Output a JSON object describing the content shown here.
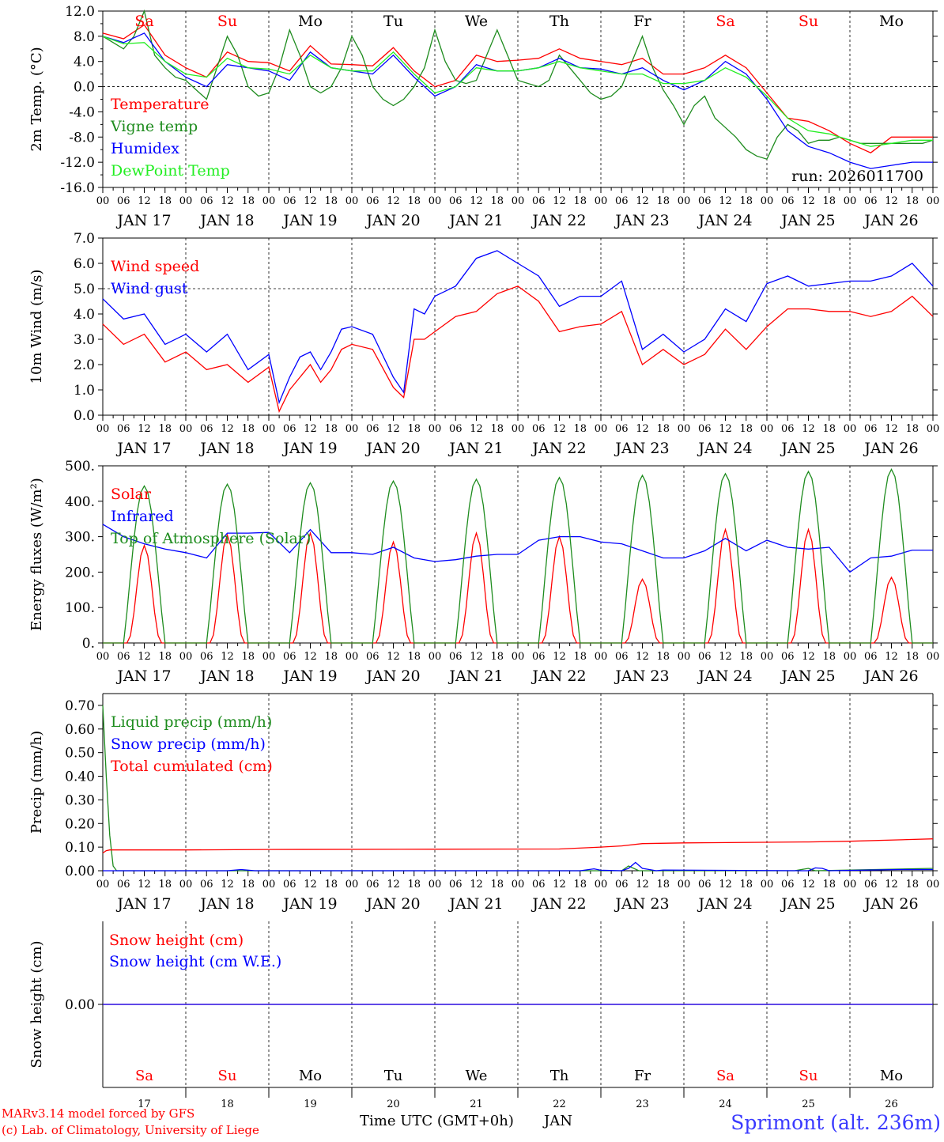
{
  "colors": {
    "red": "#ff0000",
    "darkgreen": "#1e8c1e",
    "blue": "#0000ff",
    "lightgreen": "#22ee22",
    "black": "#000000"
  },
  "days": [
    {
      "abbr": "Sa",
      "weekend": true,
      "date": "JAN 17",
      "num": "17"
    },
    {
      "abbr": "Su",
      "weekend": true,
      "date": "JAN 18",
      "num": "18"
    },
    {
      "abbr": "Mo",
      "weekend": false,
      "date": "JAN 19",
      "num": "19"
    },
    {
      "abbr": "Tu",
      "weekend": false,
      "date": "JAN 20",
      "num": "20"
    },
    {
      "abbr": "We",
      "weekend": false,
      "date": "JAN 21",
      "num": "21"
    },
    {
      "abbr": "Th",
      "weekend": false,
      "date": "JAN 22",
      "num": "22"
    },
    {
      "abbr": "Fr",
      "weekend": false,
      "date": "JAN 23",
      "num": "23"
    },
    {
      "abbr": "Sa",
      "weekend": true,
      "date": "JAN 24",
      "num": "24"
    },
    {
      "abbr": "Su",
      "weekend": true,
      "date": "JAN 25",
      "num": "25"
    },
    {
      "abbr": "Mo",
      "weekend": false,
      "date": "JAN 26",
      "num": "26"
    }
  ],
  "hour_ticks": [
    "00",
    "06",
    "12",
    "18"
  ],
  "run_label": "run: 2026011700",
  "footer": {
    "model": "MARv3.14 model forced by GFS",
    "credit": "(c) Lab. of Climatology, University of Liege",
    "axis_title": "Time UTC (GMT+0h)",
    "month": "JAN",
    "station": "Sprimont (alt. 236m)"
  },
  "chart_data": [
    {
      "id": "temp",
      "type": "line",
      "ylabel": "2m Temp. (°C)",
      "ylim": [
        -16,
        12
      ],
      "yticks": [
        "12.0",
        "8.0",
        "4.0",
        "0.0",
        "-4.0",
        "-8.0",
        "-12.0",
        "-16.0"
      ],
      "ytick_values": [
        12,
        8,
        4,
        0,
        -4,
        -8,
        -12,
        -16
      ],
      "ref_line": 0,
      "series": [
        {
          "name": "Temperature",
          "color": "red",
          "x": [
            0,
            6,
            12,
            18,
            24,
            30,
            36,
            42,
            48,
            54,
            60,
            66,
            72,
            78,
            84,
            90,
            96,
            102,
            108,
            114,
            120,
            126,
            132,
            138,
            144,
            150,
            156,
            162,
            168,
            174,
            180,
            186,
            192,
            198,
            204,
            210,
            216,
            222,
            228,
            234,
            240
          ],
          "y": [
            8.5,
            7.6,
            9.8,
            5,
            3,
            1.5,
            5.5,
            4,
            3.8,
            2.5,
            6.5,
            3.6,
            3.5,
            3.3,
            6.2,
            2.5,
            0,
            1,
            5,
            4,
            4.2,
            4.5,
            6,
            4.5,
            4,
            3.5,
            4.5,
            2,
            2,
            3,
            5,
            3,
            -1,
            -5,
            -5.5,
            -7,
            -9,
            -10.5,
            -8,
            -8,
            -8
          ]
        },
        {
          "name": "Vigne temp",
          "color": "darkgreen",
          "x": [
            0,
            3,
            6,
            9,
            12,
            15,
            18,
            21,
            24,
            27,
            30,
            33,
            36,
            39,
            42,
            45,
            48,
            51,
            54,
            57,
            60,
            63,
            66,
            69,
            72,
            75,
            78,
            81,
            84,
            87,
            90,
            93,
            96,
            99,
            102,
            105,
            108,
            111,
            114,
            117,
            120,
            123,
            126,
            129,
            132,
            135,
            138,
            141,
            144,
            147,
            150,
            153,
            156,
            159,
            162,
            165,
            168,
            171,
            174,
            177,
            180,
            183,
            186,
            189,
            192,
            195,
            198,
            201,
            204,
            207,
            210,
            213,
            216,
            219,
            222,
            225,
            228,
            231,
            234,
            237,
            240
          ],
          "y": [
            8,
            7,
            6,
            8,
            12,
            5,
            3,
            1.5,
            1,
            -0.5,
            -2,
            3,
            8,
            5,
            0,
            -1.5,
            -1,
            3,
            9,
            5,
            0,
            -1,
            0,
            3,
            8,
            5,
            0,
            -2,
            -3,
            -2,
            0,
            3,
            9,
            4,
            1,
            0.5,
            1,
            5,
            9,
            5,
            1,
            0.5,
            0,
            1,
            5,
            3,
            1,
            -1,
            -2,
            -1.5,
            0,
            4,
            8,
            3,
            -0.5,
            -3,
            -6,
            -3,
            -1.5,
            -5,
            -6.5,
            -8,
            -10,
            -11,
            -11.5,
            -8,
            -6,
            -7,
            -9,
            -8.5,
            -8.5,
            -8,
            -8.5,
            -9,
            -9,
            -9,
            -9,
            -9,
            -9,
            -9,
            -8.5
          ]
        },
        {
          "name": "Humidex",
          "color": "blue",
          "x": [
            0,
            6,
            12,
            18,
            24,
            30,
            36,
            42,
            48,
            54,
            60,
            66,
            72,
            78,
            84,
            90,
            96,
            102,
            108,
            114,
            120,
            126,
            132,
            138,
            144,
            150,
            156,
            162,
            168,
            174,
            180,
            186,
            192,
            198,
            204,
            210,
            216,
            222,
            228,
            234,
            240
          ],
          "y": [
            8,
            7,
            8.5,
            4,
            1.5,
            0,
            3.5,
            3,
            2.5,
            1,
            5.5,
            3,
            2.5,
            2,
            5,
            1.5,
            -1.5,
            0,
            3.5,
            2.5,
            2.5,
            3,
            4.5,
            3,
            2.8,
            2,
            3,
            1,
            -0.5,
            1,
            4,
            2,
            -2,
            -7,
            -9.5,
            -10.5,
            -12,
            -13,
            -12.5,
            -12,
            -12
          ]
        },
        {
          "name": "DewPoint Temp",
          "color": "lightgreen",
          "x": [
            0,
            6,
            12,
            18,
            24,
            30,
            36,
            42,
            48,
            54,
            60,
            66,
            72,
            78,
            84,
            90,
            96,
            102,
            108,
            114,
            120,
            126,
            132,
            138,
            144,
            150,
            156,
            162,
            168,
            174,
            180,
            186,
            192,
            198,
            204,
            210,
            216,
            222,
            228,
            234,
            240
          ],
          "y": [
            8,
            6.8,
            7,
            4,
            2,
            1.5,
            4.5,
            3,
            2.8,
            2,
            5,
            3,
            2.5,
            2.5,
            5.5,
            2,
            -1,
            0,
            3,
            2.5,
            2.5,
            3,
            4,
            3,
            2.5,
            2,
            2,
            0.5,
            0.5,
            1,
            3,
            1.5,
            -1.5,
            -5,
            -7,
            -7.5,
            -8.5,
            -9.5,
            -9,
            -8.5,
            -8.5
          ]
        }
      ]
    },
    {
      "id": "wind",
      "type": "line",
      "ylabel": "10m Wind (m/s)",
      "ylim": [
        0,
        7
      ],
      "yticks": [
        "7.0",
        "6.0",
        "5.0",
        "4.0",
        "3.0",
        "2.0",
        "1.0",
        "0.0"
      ],
      "ytick_values": [
        7,
        6,
        5,
        4,
        3,
        2,
        1,
        0
      ],
      "ref_line": 5,
      "series": [
        {
          "name": "Wind speed",
          "color": "red",
          "x": [
            0,
            6,
            12,
            18,
            24,
            30,
            36,
            42,
            48,
            51,
            54,
            57,
            60,
            63,
            66,
            69,
            72,
            78,
            84,
            87,
            90,
            93,
            96,
            102,
            108,
            114,
            120,
            126,
            132,
            138,
            144,
            150,
            156,
            162,
            168,
            174,
            180,
            186,
            192,
            198,
            204,
            210,
            216,
            222,
            228,
            234,
            240
          ],
          "y": [
            3.6,
            2.8,
            3.2,
            2.1,
            2.5,
            1.8,
            2,
            1.3,
            1.9,
            0.15,
            1,
            1.5,
            2,
            1.3,
            1.8,
            2.6,
            2.8,
            2.6,
            1.1,
            0.7,
            3,
            3,
            3.3,
            3.9,
            4.1,
            4.8,
            5.1,
            4.5,
            3.3,
            3.5,
            3.6,
            4.1,
            2,
            2.6,
            2,
            2.4,
            3.4,
            2.6,
            3.5,
            4.2,
            4.2,
            4.1,
            4.1,
            3.9,
            4.1,
            4.7,
            3.9
          ]
        },
        {
          "name": "Wind gust",
          "color": "blue",
          "x": [
            0,
            6,
            12,
            18,
            24,
            30,
            36,
            42,
            48,
            51,
            54,
            57,
            60,
            63,
            66,
            69,
            72,
            78,
            84,
            87,
            90,
            93,
            96,
            102,
            108,
            114,
            120,
            126,
            132,
            138,
            144,
            150,
            156,
            162,
            168,
            174,
            180,
            186,
            192,
            198,
            204,
            210,
            216,
            222,
            228,
            234,
            240
          ],
          "y": [
            4.6,
            3.8,
            4,
            2.8,
            3.2,
            2.5,
            3.2,
            1.8,
            2.4,
            0.5,
            1.5,
            2.3,
            2.5,
            1.8,
            2.5,
            3.4,
            3.5,
            3.2,
            1.5,
            0.9,
            4.2,
            4,
            4.7,
            5.1,
            6.2,
            6.5,
            6,
            5.5,
            4.3,
            4.7,
            4.7,
            5.3,
            2.6,
            3.2,
            2.5,
            3,
            4.2,
            3.7,
            5.2,
            5.5,
            5.1,
            5.2,
            5.3,
            5.3,
            5.5,
            6,
            5.1
          ]
        }
      ]
    },
    {
      "id": "energy",
      "type": "line",
      "ylabel": "Energy fluxes (W/m²)",
      "ylim": [
        0,
        500
      ],
      "yticks": [
        "500.",
        "400.",
        "300.",
        "200.",
        "100.",
        "0."
      ],
      "ytick_values": [
        500,
        400,
        300,
        200,
        100,
        0
      ],
      "series": [
        {
          "name": "Solar",
          "color": "red",
          "peaks": [
            275,
            305,
            310,
            285,
            310,
            300,
            180,
            320,
            320,
            185
          ]
        },
        {
          "name": "Infrared",
          "color": "blue",
          "x": [
            0,
            6,
            12,
            18,
            24,
            30,
            36,
            42,
            48,
            54,
            60,
            66,
            72,
            78,
            84,
            90,
            96,
            102,
            108,
            114,
            120,
            126,
            132,
            138,
            144,
            150,
            156,
            162,
            168,
            174,
            180,
            186,
            192,
            198,
            204,
            210,
            216,
            222,
            228,
            234,
            240
          ],
          "y": [
            335,
            300,
            280,
            265,
            255,
            240,
            310,
            310,
            312,
            255,
            320,
            255,
            255,
            250,
            270,
            240,
            230,
            235,
            245,
            250,
            250,
            290,
            300,
            300,
            285,
            280,
            260,
            240,
            240,
            260,
            295,
            260,
            290,
            270,
            265,
            270,
            200,
            240,
            245,
            262,
            262
          ]
        },
        {
          "name": "Top of Atmosphere (Solar)",
          "color": "darkgreen",
          "peaks": [
            443,
            448,
            452,
            457,
            462,
            467,
            473,
            478,
            484,
            490
          ]
        }
      ]
    },
    {
      "id": "precip",
      "type": "line",
      "ylabel": "Precip (mm/h)",
      "ylim": [
        0,
        0.75
      ],
      "yticks": [
        "0.70",
        "0.60",
        "0.50",
        "0.40",
        "0.30",
        "0.20",
        "0.10",
        "0.00"
      ],
      "ytick_values": [
        0.7,
        0.6,
        0.5,
        0.4,
        0.3,
        0.2,
        0.1,
        0
      ],
      "series": [
        {
          "name": "Liquid precip (mm/h)",
          "color": "darkgreen",
          "x": [
            0,
            1,
            2,
            3,
            4,
            6,
            60,
            150,
            152,
            155,
            200,
            204,
            206,
            240
          ],
          "y": [
            0.7,
            0.4,
            0.15,
            0.02,
            0,
            0,
            0,
            0,
            0.02,
            0,
            0,
            0.01,
            0,
            0.01
          ]
        },
        {
          "name": "Snow precip (mm/h)",
          "color": "blue",
          "x": [
            0,
            36,
            40,
            44,
            138,
            142,
            144,
            150,
            152,
            154,
            156,
            158,
            160,
            162,
            204,
            206,
            208,
            210,
            230,
            240
          ],
          "y": [
            0,
            0,
            0.005,
            0,
            0,
            0.008,
            0.002,
            0,
            0.01,
            0.035,
            0.01,
            0.005,
            0,
            0.003,
            0,
            0.012,
            0.01,
            0,
            0.005,
            0.005
          ]
        },
        {
          "name": "Total cumulated (cm)",
          "color": "red",
          "x": [
            0,
            1,
            2,
            3,
            24,
            48,
            96,
            132,
            144,
            150,
            156,
            168,
            204,
            216,
            240
          ],
          "y": [
            0.075,
            0.085,
            0.088,
            0.088,
            0.088,
            0.09,
            0.091,
            0.092,
            0.1,
            0.105,
            0.115,
            0.118,
            0.122,
            0.125,
            0.135
          ]
        }
      ]
    },
    {
      "id": "snow",
      "type": "line",
      "ylabel": "Snow height (cm)",
      "ylim": [
        -1,
        1
      ],
      "yticks": [
        "0.00"
      ],
      "ytick_values": [
        0
      ],
      "series": [
        {
          "name": "Snow height (cm)",
          "color": "red",
          "x": [
            0,
            240
          ],
          "y": [
            0,
            0
          ]
        },
        {
          "name": "Snow height (cm W.E.)",
          "color": "blue",
          "x": [
            0,
            240
          ],
          "y": [
            0,
            0
          ]
        }
      ]
    }
  ]
}
